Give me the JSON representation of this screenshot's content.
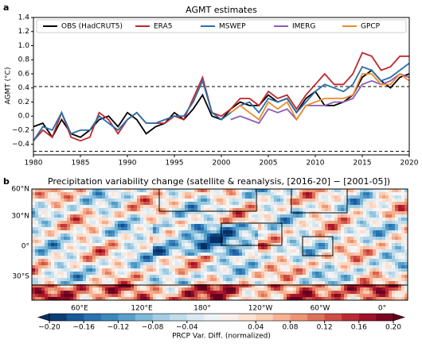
{
  "chart_data": [
    {
      "type": "line",
      "panel": "a",
      "title": "AGMT estimates",
      "y_label": "AGMT (°C)",
      "x": [
        1980,
        1981,
        1982,
        1983,
        1984,
        1985,
        1986,
        1987,
        1988,
        1989,
        1990,
        1991,
        1992,
        1993,
        1994,
        1995,
        1996,
        1997,
        1998,
        1999,
        2000,
        2001,
        2002,
        2003,
        2004,
        2005,
        2006,
        2007,
        2008,
        2009,
        2010,
        2011,
        2012,
        2013,
        2014,
        2015,
        2016,
        2017,
        2018,
        2019,
        2020
      ],
      "xlim": [
        1980,
        2020
      ],
      "xticks": [
        1980,
        1985,
        1990,
        1995,
        2000,
        2005,
        2010,
        2015,
        2020
      ],
      "ylim": [
        -0.55,
        1.4
      ],
      "yticks": [
        {
          "value": -0.4,
          "label": "−0.4"
        },
        {
          "value": -0.2,
          "label": "−0.2"
        },
        {
          "value": 0,
          "label": "0.0"
        },
        0.2,
        0.4,
        0.6,
        0.8,
        {
          "value": 1,
          "label": "1.0"
        },
        1.2,
        1.4
      ],
      "hlines": [
        0.42,
        -0.5
      ],
      "legend": "upper left",
      "series": [
        {
          "name": "OBS (HadCRUT5)",
          "color": "#000000",
          "values": [
            -0.15,
            -0.1,
            -0.3,
            -0.05,
            -0.25,
            -0.3,
            -0.2,
            -0.05,
            0.0,
            -0.15,
            0.05,
            -0.05,
            -0.25,
            -0.15,
            -0.1,
            0.05,
            -0.05,
            0.1,
            0.3,
            0.0,
            -0.05,
            0.1,
            0.2,
            0.15,
            0.15,
            0.3,
            0.2,
            0.25,
            0.05,
            0.25,
            0.35,
            0.15,
            0.15,
            0.2,
            0.3,
            0.55,
            0.65,
            0.5,
            0.4,
            0.55,
            0.6
          ]
        },
        {
          "name": "ERA5",
          "color": "#c0282d",
          "values": [
            -0.35,
            -0.2,
            -0.3,
            0.05,
            -0.3,
            -0.35,
            -0.3,
            0.05,
            -0.05,
            -0.25,
            -0.05,
            0.05,
            -0.1,
            -0.1,
            -0.1,
            0.0,
            -0.05,
            0.25,
            0.55,
            0.05,
            0.0,
            0.1,
            0.25,
            0.25,
            0.15,
            0.35,
            0.25,
            0.3,
            0.1,
            0.3,
            0.45,
            0.6,
            0.45,
            0.45,
            0.6,
            0.9,
            0.85,
            0.65,
            0.7,
            0.85,
            0.85
          ]
        },
        {
          "name": "MSWEP",
          "color": "#2a6ea8",
          "values": [
            -0.35,
            -0.15,
            -0.2,
            0.05,
            -0.25,
            -0.2,
            -0.2,
            0.0,
            -0.1,
            -0.2,
            -0.05,
            0.05,
            -0.1,
            -0.1,
            -0.05,
            0.0,
            0.0,
            0.2,
            0.5,
            0.05,
            -0.05,
            0.05,
            0.15,
            0.2,
            0.05,
            0.25,
            0.2,
            0.25,
            0.05,
            0.2,
            0.35,
            0.45,
            0.4,
            0.35,
            0.45,
            0.7,
            0.65,
            0.5,
            0.55,
            0.65,
            0.75
          ]
        },
        {
          "name": "IMERG",
          "color": "#8a5db8",
          "values": [
            null,
            null,
            null,
            null,
            null,
            null,
            null,
            null,
            null,
            null,
            null,
            null,
            null,
            null,
            null,
            null,
            null,
            null,
            null,
            null,
            null,
            -0.05,
            0.0,
            -0.05,
            -0.1,
            0.1,
            0.05,
            0.1,
            -0.05,
            0.15,
            0.15,
            0.15,
            0.2,
            0.2,
            0.25,
            0.45,
            0.5,
            0.45,
            0.5,
            0.6,
            0.55
          ]
        },
        {
          "name": "GPCP",
          "color": "#ee8a2a",
          "values": [
            null,
            null,
            null,
            null,
            null,
            null,
            null,
            null,
            null,
            null,
            null,
            null,
            null,
            null,
            null,
            null,
            null,
            null,
            null,
            null,
            null,
            0.05,
            0.15,
            0.05,
            -0.05,
            0.2,
            0.1,
            0.2,
            -0.05,
            0.15,
            0.2,
            0.25,
            0.25,
            0.25,
            0.3,
            0.6,
            0.6,
            0.45,
            0.45,
            0.6,
            0.5
          ]
        }
      ]
    },
    {
      "type": "map",
      "panel": "b",
      "title": "Precipitation variability change (satellite & reanalysis, [2016-20] − [2001-05])",
      "x_labels": [
        "60°E",
        "120°E",
        "180°",
        "120°W",
        "60°W",
        "0°"
      ],
      "y_labels": [
        "60°N",
        "30°N",
        "0°",
        "30°S"
      ],
      "colorbar_label": "PRCP Var. Diff. (normalized)",
      "clim": [
        -0.2,
        0.2
      ],
      "colorbar_ticks": [
        {
          "value": -0.2,
          "label": "−0.20"
        },
        {
          "value": -0.16,
          "label": "−0.16"
        },
        {
          "value": -0.12,
          "label": "−0.12"
        },
        {
          "value": -0.08,
          "label": "−0.08"
        },
        {
          "value": -0.04,
          "label": "−0.04"
        },
        0.04,
        0.08,
        0.12,
        0.16,
        {
          "value": 0.2,
          "label": "0.20"
        }
      ],
      "colormap": [
        "#053061",
        "#2166ac",
        "#4393c3",
        "#92c5de",
        "#d1e5f0",
        "#f7f7f7",
        "#fddbc7",
        "#f4a582",
        "#d6604d",
        "#b2182b",
        "#67001f"
      ]
    }
  ]
}
